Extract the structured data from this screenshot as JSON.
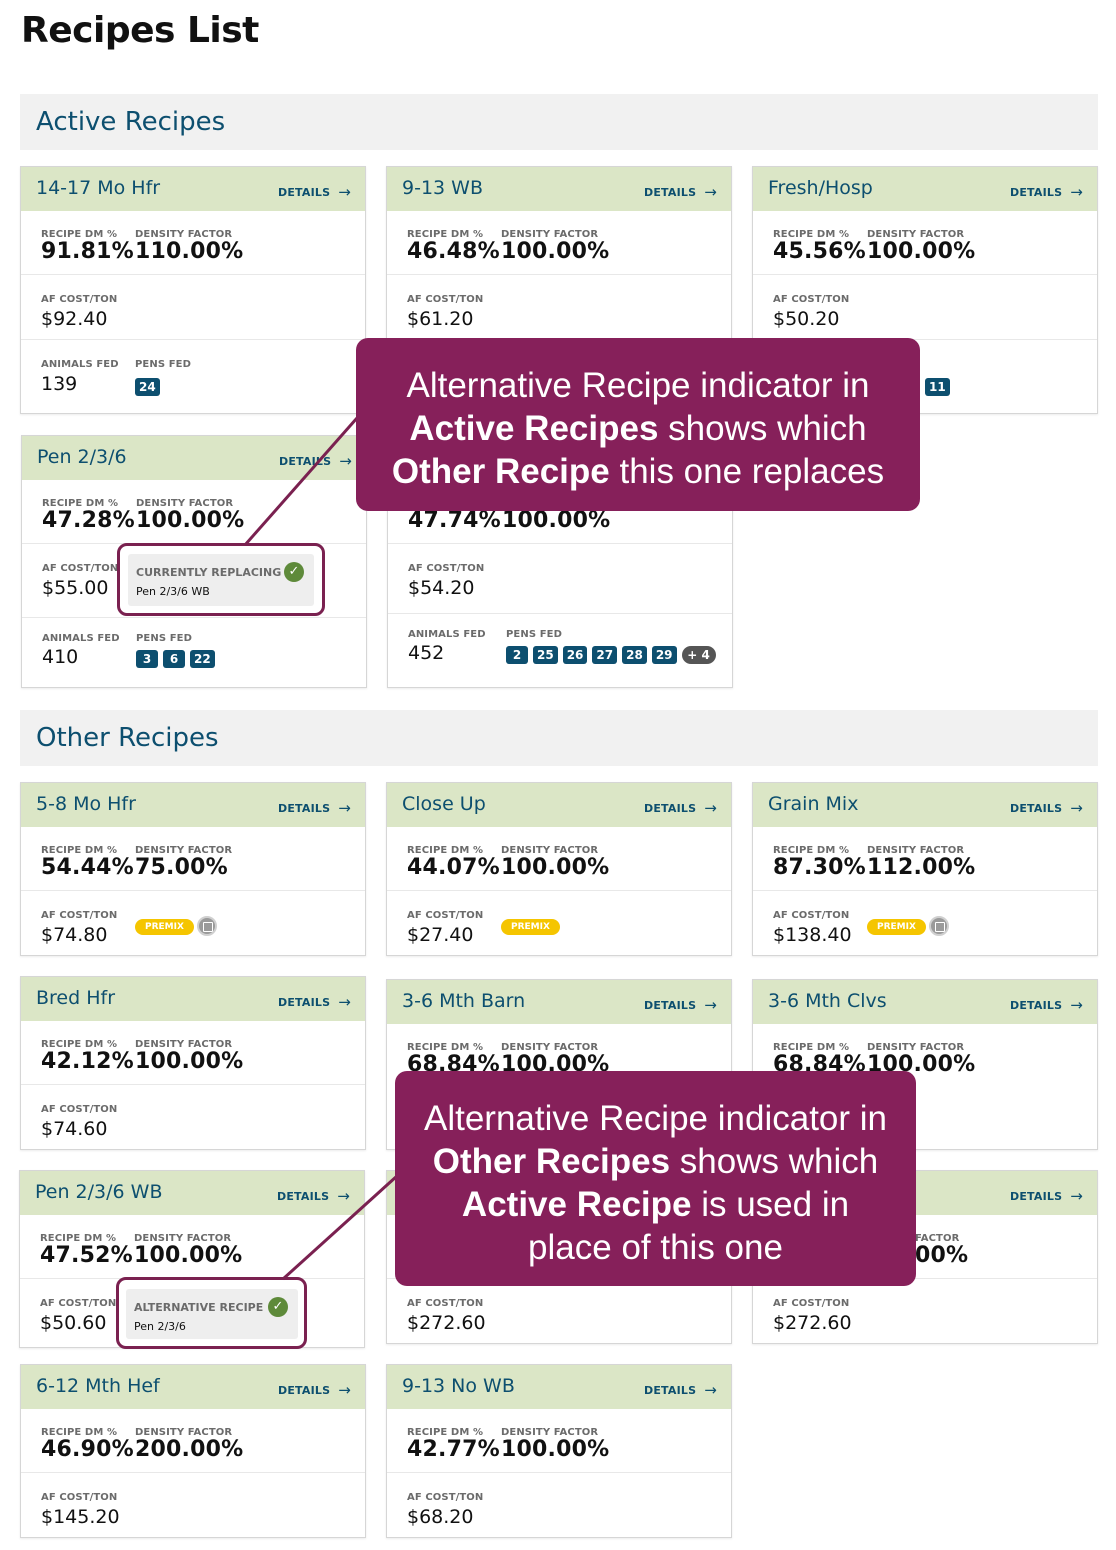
{
  "page": {
    "title": "Recipes List"
  },
  "labels": {
    "details": "DETAILS",
    "recipe_dm": "RECIPE DM %",
    "density_factor": "DENSITY FACTOR",
    "af_cost": "AF COST/TON",
    "animals_fed": "ANIMALS FED",
    "pens_fed": "PENS FED",
    "premix": "PREMIX"
  },
  "sections": {
    "active": "Active Recipes",
    "other": "Other Recipes"
  },
  "active_recipes": [
    {
      "name": "14-17 Mo Hfr",
      "dm": "91.81%",
      "density": "110.00%",
      "cost": "$92.40",
      "animals": "139",
      "pens": [
        "24"
      ]
    },
    {
      "name": "9-13 WB",
      "dm": "46.48%",
      "density": "100.00%",
      "cost": "$61.20",
      "animals": "",
      "pens": []
    },
    {
      "name": "Fresh/Hosp",
      "dm": "45.56%",
      "density": "100.00%",
      "cost": "$50.20",
      "animals": "",
      "pens": [
        "11"
      ]
    },
    {
      "name": "Pen 2/3/6",
      "dm": "47.28%",
      "density": "100.00%",
      "cost": "$55.00",
      "animals": "410",
      "pens": [
        "3",
        "6",
        "22"
      ],
      "replacing": {
        "label": "CURRENTLY REPLACING",
        "value": "Pen 2/3/6 WB"
      }
    },
    {
      "name": "",
      "dm": "47.74%",
      "density": "100.00%",
      "cost": "$54.20",
      "animals": "452",
      "pens": [
        "2",
        "25",
        "26",
        "27",
        "28",
        "29",
        "+ 4"
      ]
    }
  ],
  "other_recipes": [
    {
      "name": "5-8 Mo Hfr",
      "dm": "54.44%",
      "density": "75.00%",
      "cost": "$74.80",
      "premix": true,
      "icon": "recipe-info-icon"
    },
    {
      "name": "Close Up",
      "dm": "44.07%",
      "density": "100.00%",
      "cost": "$27.40",
      "premix": true
    },
    {
      "name": "Grain Mix",
      "dm": "87.30%",
      "density": "112.00%",
      "cost": "$138.40",
      "premix": true,
      "icon": "recipe-info-icon"
    },
    {
      "name": "Bred Hfr",
      "dm": "42.12%",
      "density": "100.00%",
      "cost": "$74.60"
    },
    {
      "name": "3-6 Mth Barn",
      "dm": "68.84%",
      "density": "100.00%",
      "cost": ""
    },
    {
      "name": "3-6 Mth Clvs",
      "dm": "68.84%",
      "density": "100.00%",
      "cost": ""
    },
    {
      "name": "Pen 2/3/6 WB",
      "dm": "47.52%",
      "density": "100.00%",
      "cost": "$50.60",
      "alternative": {
        "label": "ALTERNATIVE RECIPE",
        "value": "Pen 2/3/6"
      }
    },
    {
      "name": "",
      "dm": "",
      "density": "",
      "cost": "$272.60"
    },
    {
      "name": "",
      "dm": "",
      "density": "00%",
      "cost": "$272.60",
      "partial_density_label": "FACTOR"
    },
    {
      "name": "6-12 Mth Hef",
      "dm": "46.90%",
      "density": "200.00%",
      "cost": "$145.20"
    },
    {
      "name": "9-13 No WB",
      "dm": "42.77%",
      "density": "100.00%",
      "cost": "$68.20"
    }
  ],
  "callouts": {
    "top": [
      "Alternative Recipe indicator in",
      "Active Recipes",
      " shows which",
      "Other Recipe",
      " this one replaces"
    ],
    "bottom": [
      "Alternative Recipe indicator in",
      "Other Recipes",
      " shows which",
      "Active Recipe",
      " is used in",
      "place of this one"
    ]
  },
  "colors": {
    "card_header": "#dbe6c6",
    "title_blue": "#0d4f6f",
    "callout": "#86205a",
    "premix": "#f5c500",
    "check": "#5e8a3a"
  }
}
